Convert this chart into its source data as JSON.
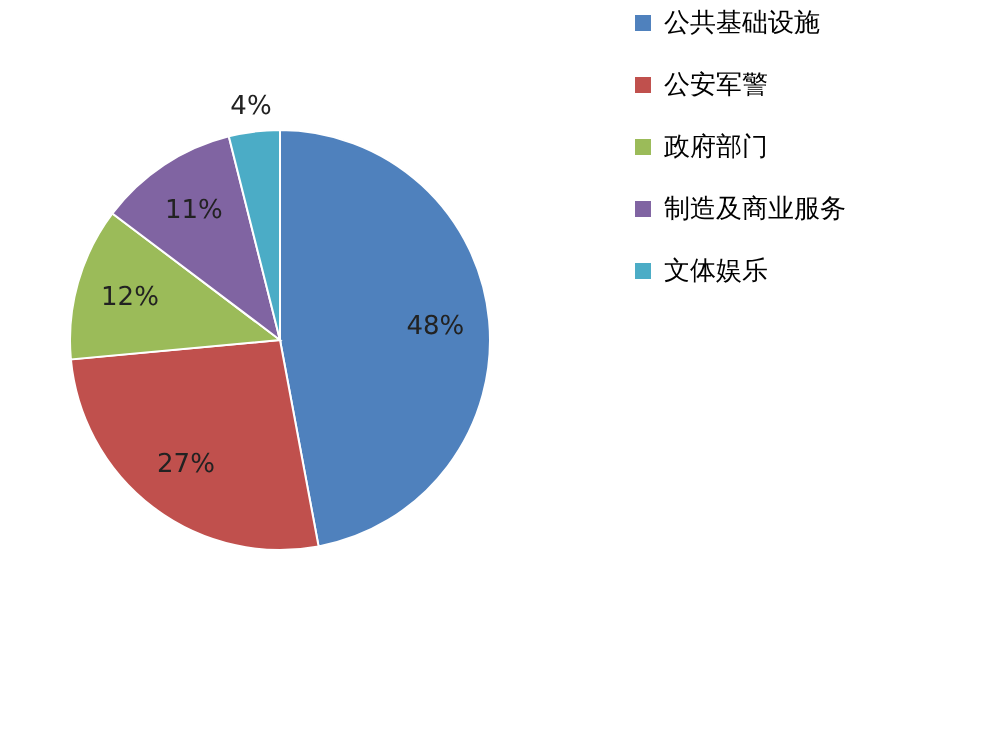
{
  "chart_data": {
    "type": "pie",
    "categories": [
      "公共基础设施",
      "公安军警",
      "政府部门",
      "制造及商业服务",
      "文体娱乐"
    ],
    "values": [
      48,
      27,
      12,
      11,
      4
    ],
    "colors": [
      "#4f81bd",
      "#c0504d",
      "#9bbb59",
      "#8064a2",
      "#4bacc6"
    ],
    "value_labels": [
      "48%",
      "27%",
      "12%",
      "11%",
      "4%"
    ],
    "legend": "right"
  }
}
